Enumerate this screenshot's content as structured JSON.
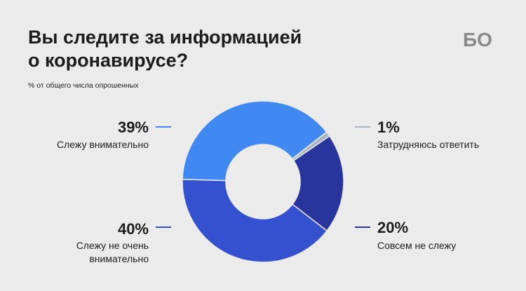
{
  "title_line1": "Вы следите за информацией",
  "title_line2": "о коронавирусе?",
  "subtitle": "% от общего числа опрошенных",
  "logo_text": "БО",
  "chart_data": {
    "type": "donut",
    "title": "Вы следите за информацией о коронавирусе?",
    "subtitle": "% от общего числа опрошенных",
    "slices": [
      {
        "label": "Затрудняюсь ответить",
        "value": 1,
        "value_label": "1%",
        "color": "#a9b4c4"
      },
      {
        "label": "Совсем не слежу",
        "value": 20,
        "value_label": "20%",
        "color": "#27359c"
      },
      {
        "label": "Слежу не очень внимательно",
        "value": 40,
        "value_label": "40%",
        "color": "#3451cf"
      },
      {
        "label": "Слежу внимательно",
        "value": 39,
        "value_label": "39%",
        "color": "#4189f2"
      }
    ]
  },
  "labels": {
    "attentive": {
      "pct": "39%",
      "text": "Слежу внимательно"
    },
    "not_very_line1": "Слежу не очень",
    "not_very_line2": "внимательно",
    "not_very_pct": "40%",
    "hard": {
      "pct": "1%",
      "text": "Затрудняюсь ответить"
    },
    "not_at_all": {
      "pct": "20%",
      "text": "Совсем не слежу"
    }
  }
}
